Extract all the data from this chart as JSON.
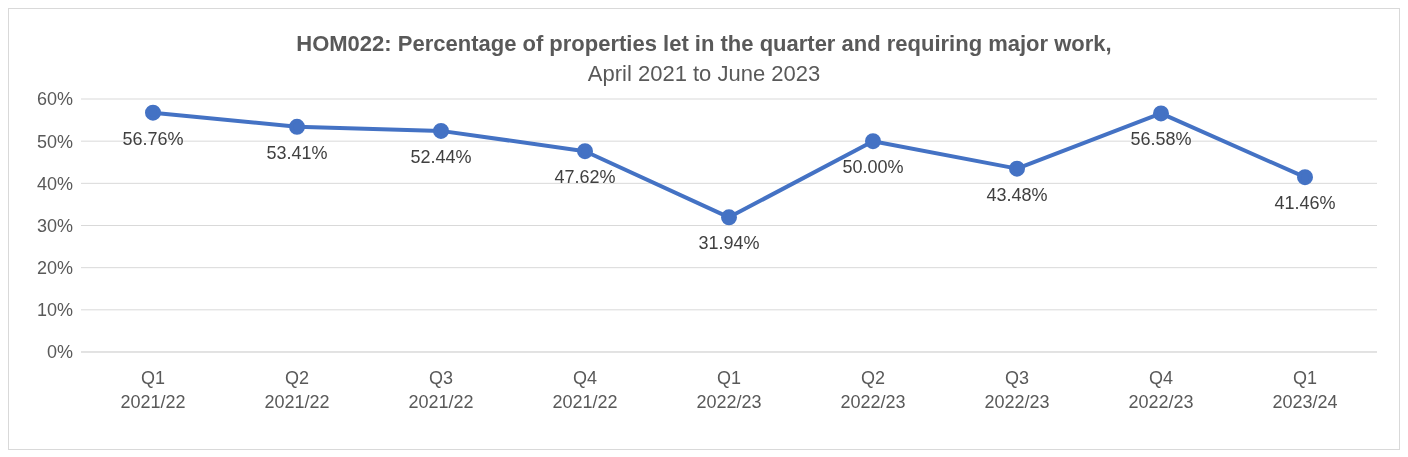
{
  "chart_data": {
    "type": "line",
    "title": "HOM022: Percentage of properties let in the quarter and requiring major work,",
    "subtitle": "April 2021 to June 2023",
    "categories": [
      "Q1\n2021/22",
      "Q2\n2021/22",
      "Q3\n2021/22",
      "Q4\n2021/22",
      "Q1\n2022/23",
      "Q2\n2022/23",
      "Q3\n2022/23",
      "Q4\n2022/23",
      "Q1\n2023/24"
    ],
    "series": [
      {
        "color": "#4472c4",
        "values": [
          56.76,
          53.41,
          52.44,
          47.62,
          31.94,
          50.0,
          43.48,
          56.58,
          41.46
        ],
        "value_labels": [
          "56.76%",
          "53.41%",
          "52.44%",
          "47.62%",
          "31.94%",
          "50.00%",
          "43.48%",
          "56.58%",
          "41.46%"
        ]
      }
    ],
    "ylim": [
      0,
      60
    ],
    "yticks": [
      {
        "value": 0,
        "label": "0%"
      },
      {
        "value": 10,
        "label": "10%"
      },
      {
        "value": 20,
        "label": "20%"
      },
      {
        "value": 30,
        "label": "30%"
      },
      {
        "value": 40,
        "label": "40%"
      },
      {
        "value": 50,
        "label": "50%"
      },
      {
        "value": 60,
        "label": "60%"
      }
    ],
    "grid": "y",
    "marker": "circle",
    "line_style": "solid"
  }
}
